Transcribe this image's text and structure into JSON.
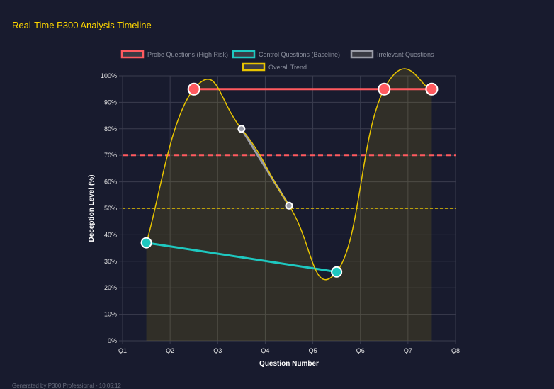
{
  "title": "Real-Time P300 Analysis Timeline",
  "footer": "Generated by P300 Professional - 10:05:12",
  "chart_data": {
    "type": "line",
    "xlabel": "Question Number",
    "ylabel": "Deception Level (%)",
    "x_ticks": [
      "Q1",
      "Q2",
      "Q3",
      "Q4",
      "Q5",
      "Q6",
      "Q7",
      "Q8"
    ],
    "ylim": [
      0,
      100
    ],
    "y_ticks": [
      "0%",
      "10%",
      "20%",
      "30%",
      "40%",
      "50%",
      "60%",
      "70%",
      "80%",
      "90%",
      "100%"
    ],
    "grid": true,
    "legend_position": "top",
    "series": [
      {
        "name": "Probe Questions (High Risk)",
        "color": "#ff5a5f",
        "x": [
          2.5,
          6.5,
          7.5
        ],
        "values": [
          95,
          95,
          95
        ]
      },
      {
        "name": "Control Questions (Baseline)",
        "color": "#1ec8c0",
        "x": [
          1.5,
          5.5
        ],
        "values": [
          37,
          26
        ]
      },
      {
        "name": "Irrelevant Questions",
        "color": "#9a9ca8",
        "x": [
          3.5,
          4.5
        ],
        "values": [
          80,
          51
        ]
      },
      {
        "name": "Overall Trend",
        "color": "#e8c400",
        "x": [
          1.5,
          2.5,
          3.5,
          4.5,
          5.5,
          6.5,
          7.5
        ],
        "values": [
          37,
          95,
          80,
          51,
          26,
          95,
          95
        ]
      }
    ],
    "thresholds": [
      {
        "value": 70,
        "color": "#ff5a5f"
      },
      {
        "value": 50,
        "color": "#e8c400"
      }
    ]
  }
}
